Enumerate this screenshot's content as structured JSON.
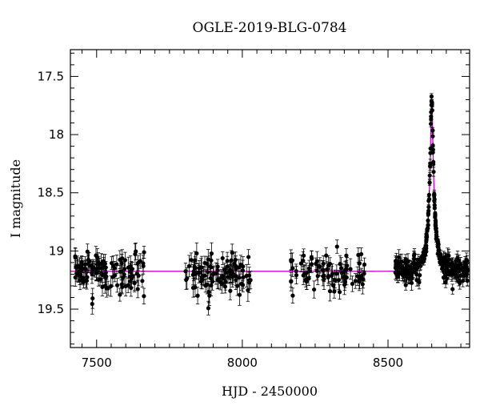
{
  "chart_data": {
    "type": "scatter",
    "title": "OGLE-2019-BLG-0784",
    "xlabel": "HJD - 2450000",
    "ylabel": "I magnitude",
    "xlim": [
      7410,
      8780
    ],
    "ylim": [
      19.83,
      17.27
    ],
    "y_inverted": true,
    "grid": false,
    "legend": "none",
    "xticks": [
      7500,
      8000,
      8500
    ],
    "yticks": [
      17.5,
      18,
      18.5,
      19,
      19.5
    ],
    "x_minor_step": 50,
    "y_minor_step": 0.1,
    "colors": {
      "points": "#000000",
      "model": "#cc00cc"
    },
    "baseline_mag": 19.175,
    "season_mag_offsets": [
      0.0,
      0.02,
      0.015,
      -0.005
    ],
    "series": [
      {
        "kind": "points_with_errorbars",
        "seasons": [
          {
            "range": [
              7425,
              7665
            ],
            "n": 115,
            "sigma": 0.08,
            "err": 0.07
          },
          {
            "range": [
              7805,
              8030
            ],
            "n": 95,
            "sigma": 0.09,
            "err": 0.075
          },
          {
            "range": [
              8165,
              8420
            ],
            "n": 85,
            "sigma": 0.08,
            "err": 0.07
          },
          {
            "range": [
              8525,
              8775
            ],
            "n": 240,
            "sigma": 0.06,
            "err": 0.05
          }
        ]
      },
      {
        "kind": "model_curve",
        "t0": 8650,
        "peak_mag": 17.7,
        "tE": 25,
        "u0": 0.135
      }
    ]
  }
}
